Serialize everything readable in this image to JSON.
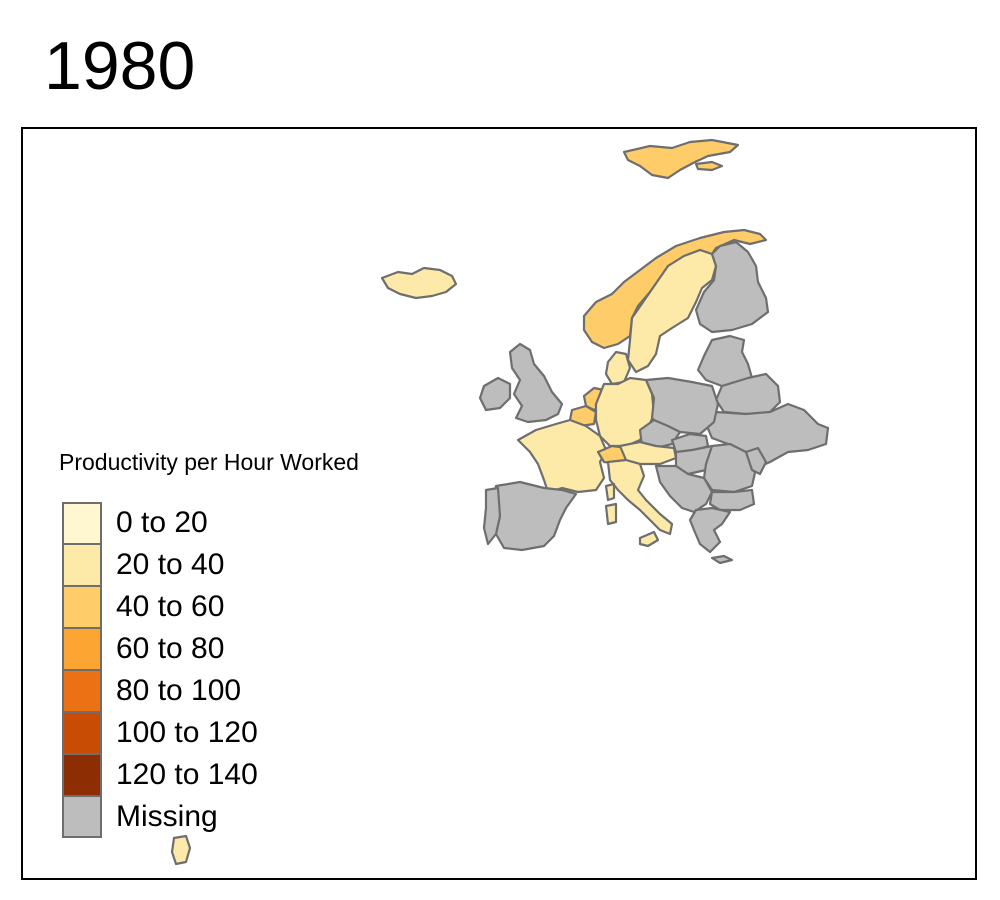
{
  "title": "1980",
  "legend": {
    "title": "Productivity per Hour Worked",
    "items": [
      {
        "label": "0 to 20",
        "color": "#fff7cf"
      },
      {
        "label": "20 to 40",
        "color": "#feeaa8"
      },
      {
        "label": "40 to 60",
        "color": "#fecc68"
      },
      {
        "label": "60 to 80",
        "color": "#fda532"
      },
      {
        "label": "80 to 100",
        "color": "#ec7014"
      },
      {
        "label": "100 to 120",
        "color": "#c94c04"
      },
      {
        "label": "120 to 140",
        "color": "#8c2d04"
      },
      {
        "label": "Missing",
        "color": "#bdbdbd"
      }
    ]
  },
  "regions": [
    {
      "name": "Norway",
      "category": "40 to 60"
    },
    {
      "name": "Svalbard",
      "category": "40 to 60"
    },
    {
      "name": "Iceland",
      "category": "20 to 40"
    },
    {
      "name": "Sweden",
      "category": "20 to 40"
    },
    {
      "name": "Finland",
      "category": "Missing"
    },
    {
      "name": "Denmark",
      "category": "20 to 40"
    },
    {
      "name": "United Kingdom",
      "category": "Missing"
    },
    {
      "name": "Ireland",
      "category": "Missing"
    },
    {
      "name": "Netherlands",
      "category": "40 to 60"
    },
    {
      "name": "Belgium",
      "category": "40 to 60"
    },
    {
      "name": "Germany",
      "category": "20 to 40"
    },
    {
      "name": "France",
      "category": "20 to 40"
    },
    {
      "name": "Switzerland",
      "category": "40 to 60"
    },
    {
      "name": "Austria",
      "category": "20 to 40"
    },
    {
      "name": "Italy",
      "category": "20 to 40"
    },
    {
      "name": "Spain",
      "category": "Missing"
    },
    {
      "name": "Portugal",
      "category": "Missing"
    },
    {
      "name": "Poland",
      "category": "Missing"
    },
    {
      "name": "Baltics",
      "category": "Missing"
    },
    {
      "name": "Belarus",
      "category": "Missing"
    },
    {
      "name": "Ukraine",
      "category": "Missing"
    },
    {
      "name": "Czechia",
      "category": "Missing"
    },
    {
      "name": "Slovakia",
      "category": "Missing"
    },
    {
      "name": "Hungary",
      "category": "Missing"
    },
    {
      "name": "Romania",
      "category": "Missing"
    },
    {
      "name": "Moldova",
      "category": "Missing"
    },
    {
      "name": "Balkans",
      "category": "Missing"
    },
    {
      "name": "Bulgaria",
      "category": "Missing"
    },
    {
      "name": "Greece",
      "category": "Missing"
    },
    {
      "name": "Cyprus",
      "category": "Missing"
    },
    {
      "name": "Corsica",
      "category": "20 to 40"
    },
    {
      "name": "Sardinia",
      "category": "20 to 40"
    },
    {
      "name": "Sicily",
      "category": "20 to 40"
    },
    {
      "name": "Reunion",
      "category": "20 to 40"
    }
  ]
}
